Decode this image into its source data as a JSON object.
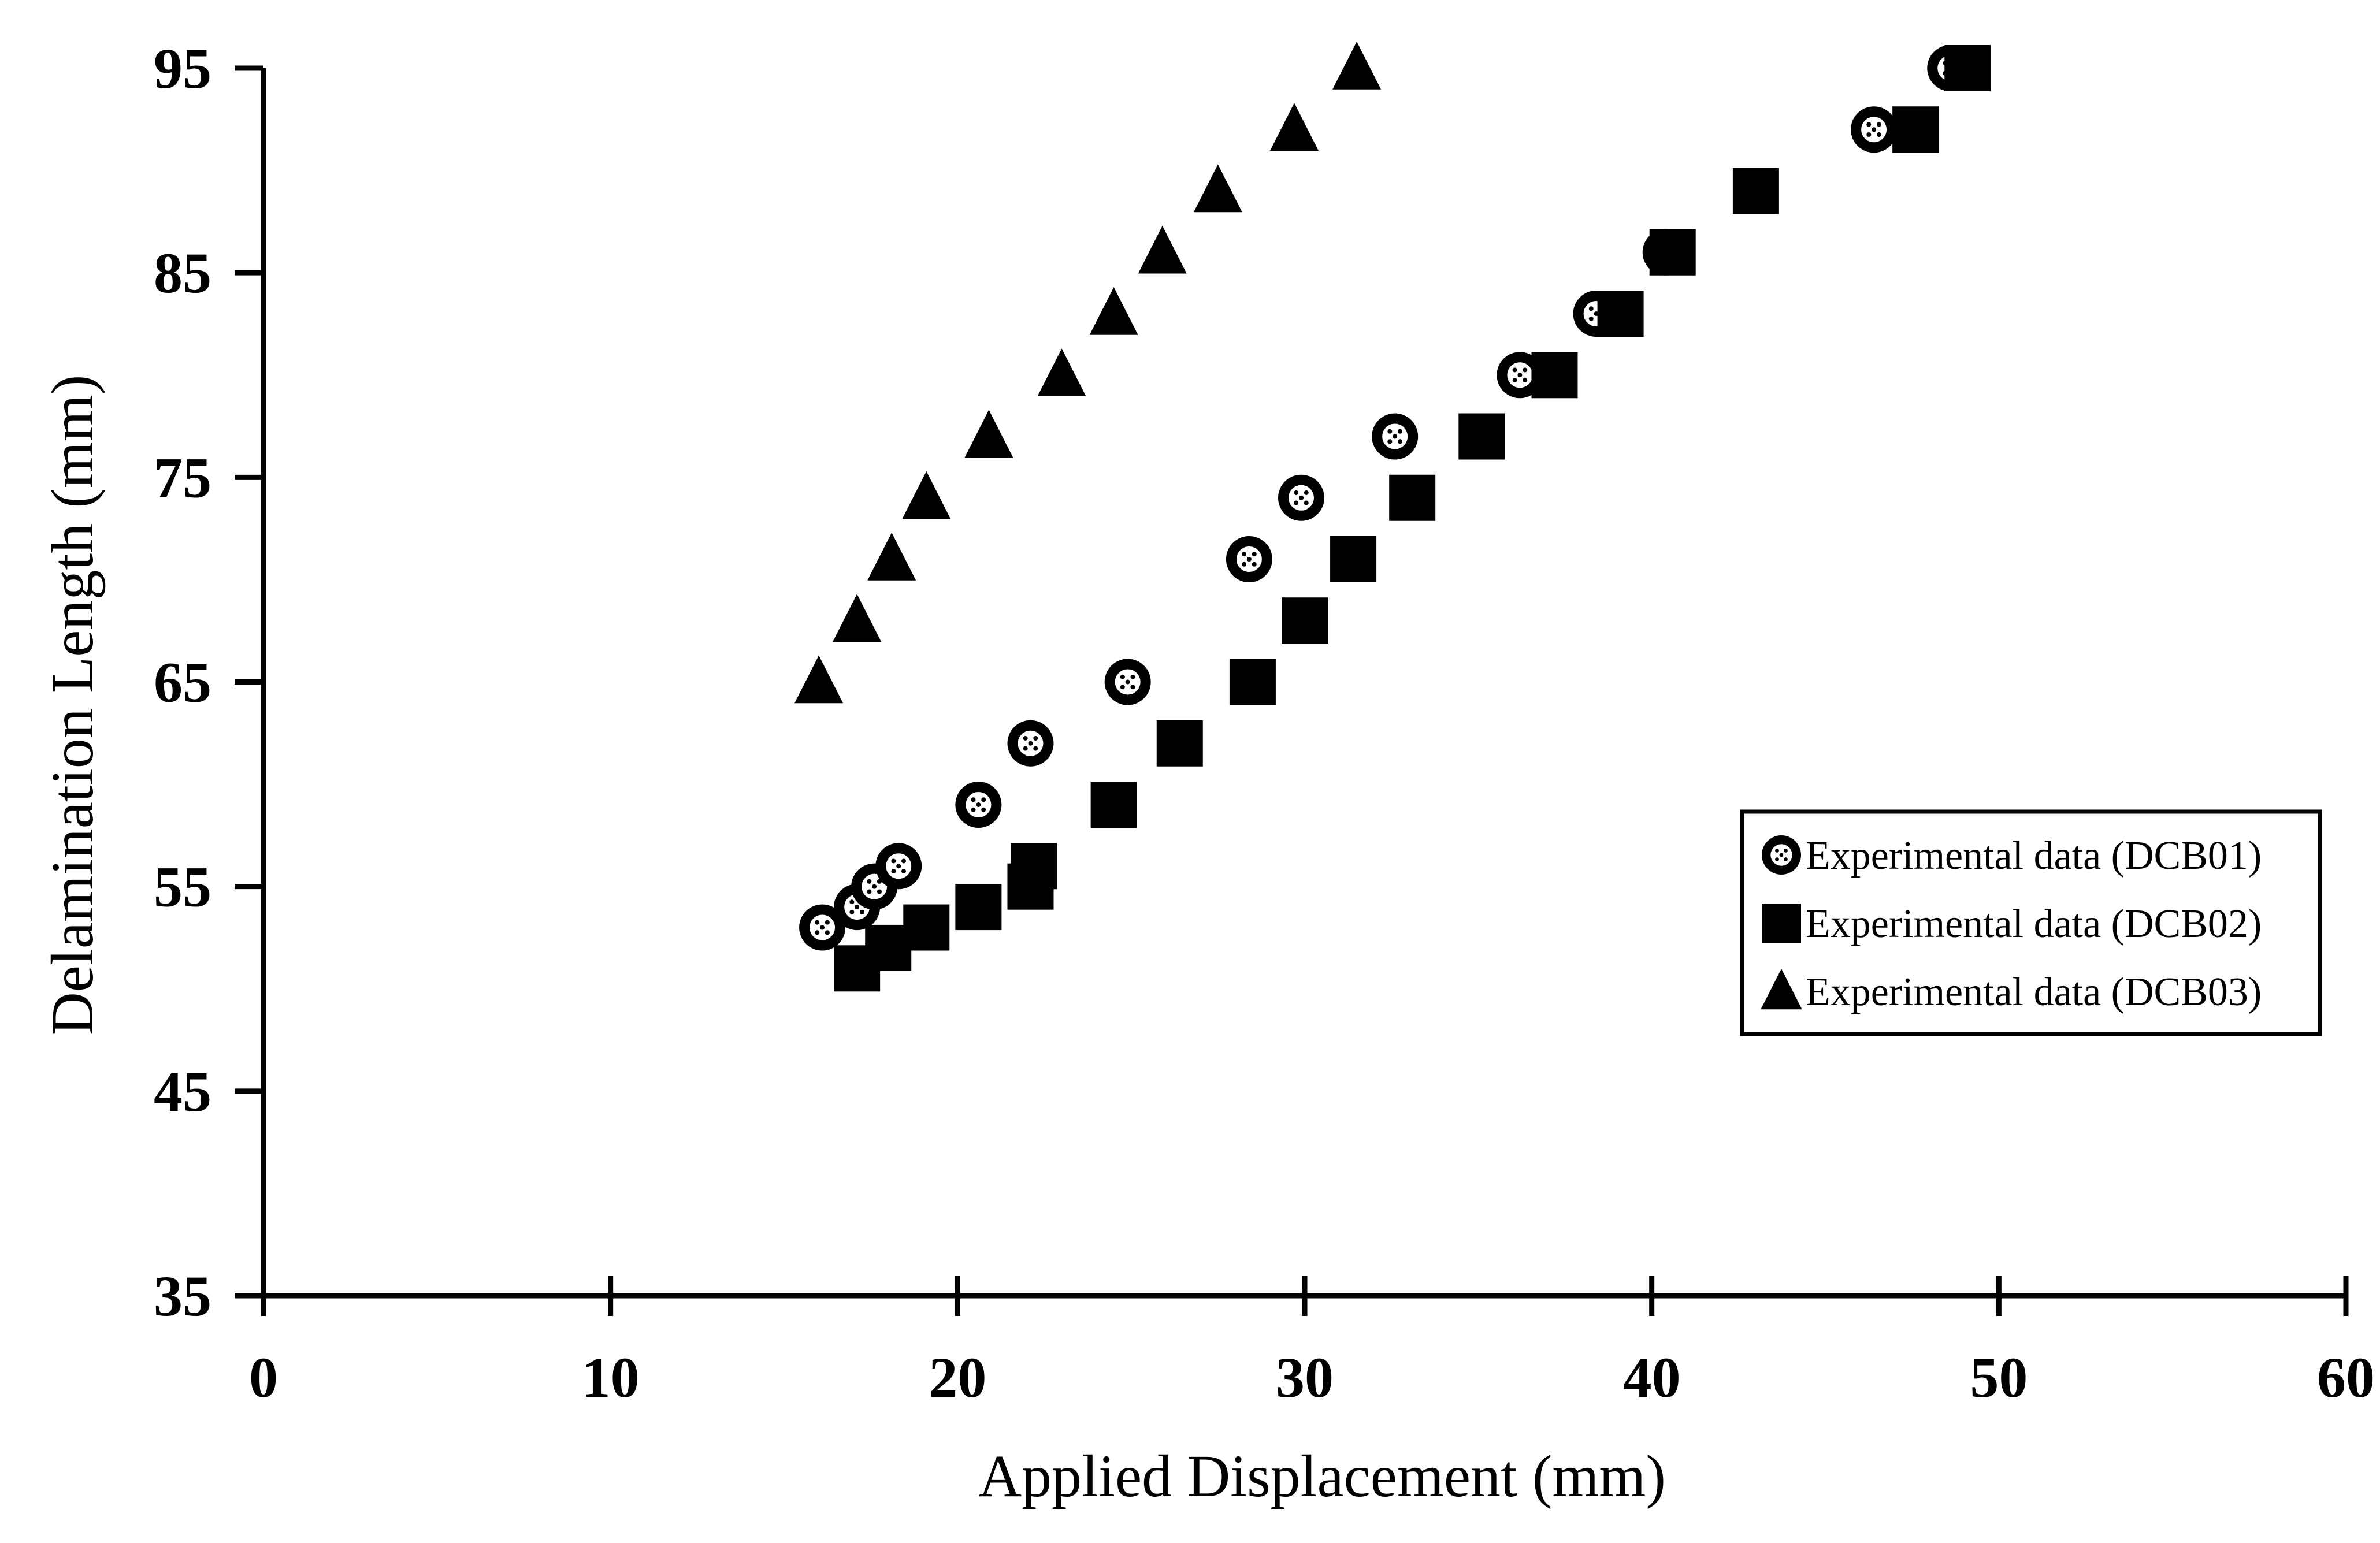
{
  "chart_data": {
    "type": "scatter",
    "xlabel": "Applied Displacement (mm)",
    "ylabel": "Delamination Length (mm)",
    "xlim": [
      0,
      60
    ],
    "ylim": [
      35,
      95
    ],
    "xticks": [
      0,
      10,
      20,
      30,
      40,
      50,
      60
    ],
    "yticks": [
      35,
      45,
      55,
      65,
      75,
      85,
      95
    ],
    "grid": false,
    "legend_position": "right-middle",
    "series": [
      {
        "name": "Experimental data (DCB01)",
        "marker": "circle-dotted",
        "color": "#000000",
        "points": [
          [
            16.1,
            53
          ],
          [
            17.1,
            54
          ],
          [
            17.6,
            55
          ],
          [
            18.3,
            56
          ],
          [
            20.6,
            59
          ],
          [
            22.1,
            62
          ],
          [
            24.9,
            65
          ],
          [
            28.4,
            71
          ],
          [
            29.9,
            74
          ],
          [
            32.6,
            77
          ],
          [
            36.2,
            80
          ],
          [
            38.4,
            83
          ],
          [
            40.4,
            86
          ],
          [
            46.4,
            92
          ],
          [
            48.6,
            95
          ]
        ]
      },
      {
        "name": "Experimental data (DCB02)",
        "marker": "square",
        "color": "#000000",
        "points": [
          [
            17.1,
            51
          ],
          [
            18.0,
            52
          ],
          [
            19.1,
            53
          ],
          [
            20.6,
            54
          ],
          [
            22.1,
            55
          ],
          [
            22.2,
            56
          ],
          [
            24.5,
            59
          ],
          [
            26.4,
            62
          ],
          [
            28.5,
            65
          ],
          [
            30.0,
            68
          ],
          [
            31.4,
            71
          ],
          [
            33.1,
            74
          ],
          [
            35.1,
            77
          ],
          [
            37.2,
            80
          ],
          [
            39.1,
            83
          ],
          [
            40.6,
            86
          ],
          [
            43.0,
            89
          ],
          [
            47.6,
            92
          ],
          [
            49.1,
            95
          ]
        ]
      },
      {
        "name": "Experimental data (DCB03)",
        "marker": "triangle",
        "color": "#000000",
        "points": [
          [
            16.0,
            65
          ],
          [
            17.1,
            68
          ],
          [
            18.1,
            71
          ],
          [
            19.1,
            74
          ],
          [
            20.9,
            77
          ],
          [
            23.0,
            80
          ],
          [
            24.5,
            83
          ],
          [
            25.9,
            86
          ],
          [
            27.5,
            89
          ],
          [
            29.7,
            92
          ],
          [
            31.5,
            95
          ]
        ]
      }
    ]
  }
}
